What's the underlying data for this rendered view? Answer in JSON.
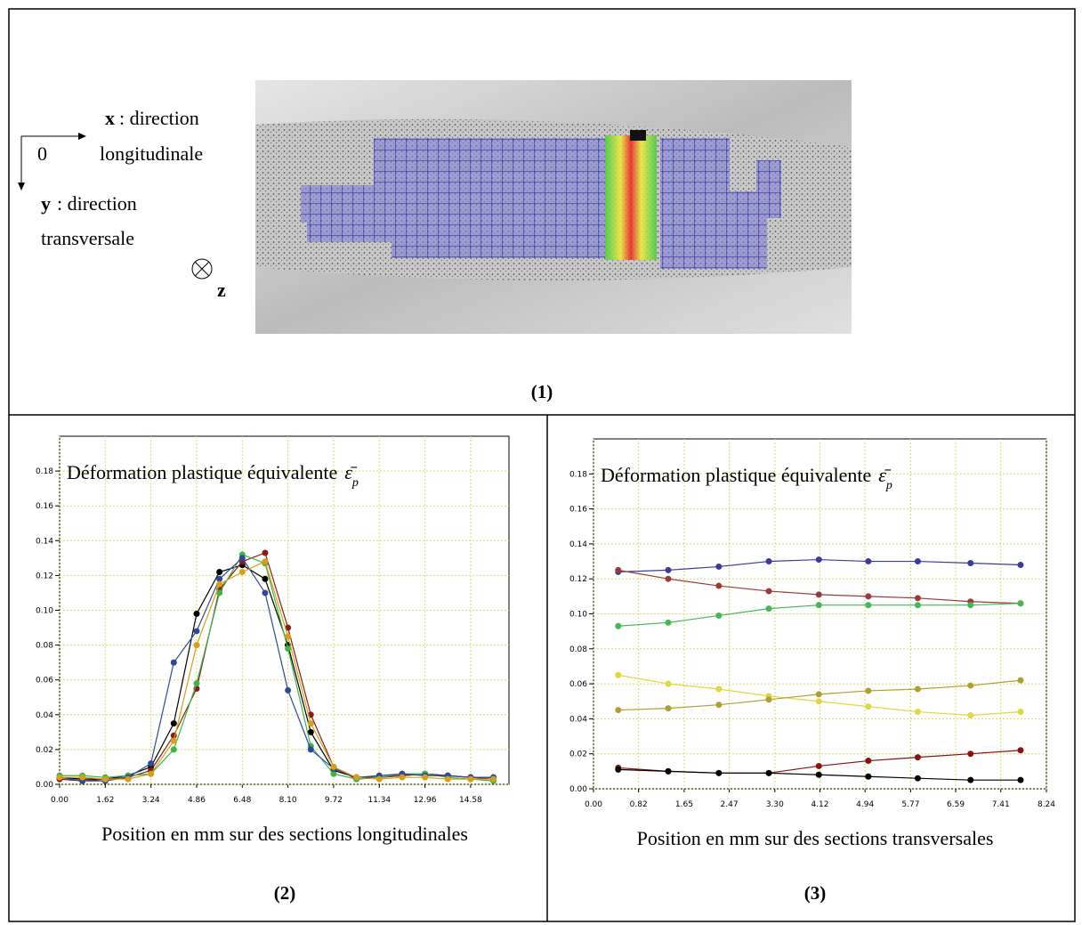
{
  "panel1": {
    "x_axis": "x",
    "x_desc": ": direction",
    "x_desc2": "longitudinale",
    "origin": "0",
    "y_axis": "y",
    "y_desc": ": direction",
    "y_desc2": "transversale",
    "z_axis": "z",
    "caption": "(1)"
  },
  "chart_data": [
    {
      "type": "line",
      "title": "Déformation plastique équivalente",
      "title_symbol": "ε̄",
      "title_subscript": "p",
      "x_label": "Position en mm sur des sections longitudinales",
      "caption": "(2)",
      "grid": true,
      "x": [
        0,
        0.81,
        1.62,
        2.43,
        3.24,
        4.05,
        4.86,
        5.67,
        6.48,
        7.29,
        8.1,
        8.91,
        9.72,
        10.53,
        11.34,
        12.15,
        12.96,
        13.77,
        14.58,
        15.39
      ],
      "series": [
        {
          "color": "#000000",
          "values": [
            0.004,
            0.003,
            0.003,
            0.005,
            0.01,
            0.035,
            0.098,
            0.122,
            0.126,
            0.118,
            0.08,
            0.03,
            0.008,
            0.004,
            0.004,
            0.005,
            0.006,
            0.005,
            0.004,
            0.004
          ]
        },
        {
          "color": "#8b1a1a",
          "values": [
            0.003,
            0.002,
            0.003,
            0.004,
            0.008,
            0.028,
            0.055,
            0.112,
            0.128,
            0.133,
            0.09,
            0.04,
            0.01,
            0.003,
            0.004,
            0.005,
            0.006,
            0.005,
            0.004,
            0.003
          ]
        },
        {
          "color": "#3cb44b",
          "values": [
            0.005,
            0.005,
            0.004,
            0.005,
            0.006,
            0.02,
            0.058,
            0.11,
            0.132,
            0.127,
            0.078,
            0.022,
            0.006,
            0.003,
            0.004,
            0.006,
            0.006,
            0.004,
            0.003,
            0.002
          ]
        },
        {
          "color": "#2d4a9a",
          "values": [
            0.004,
            0.002,
            0.002,
            0.004,
            0.012,
            0.07,
            0.088,
            0.118,
            0.13,
            0.11,
            0.054,
            0.02,
            0.009,
            0.004,
            0.005,
            0.006,
            0.005,
            0.005,
            0.004,
            0.004
          ]
        },
        {
          "color": "#d4a017",
          "values": [
            0.004,
            0.004,
            0.003,
            0.003,
            0.006,
            0.025,
            0.08,
            0.115,
            0.122,
            0.128,
            0.085,
            0.035,
            0.01,
            0.004,
            0.003,
            0.004,
            0.004,
            0.003,
            0.003,
            0.003
          ]
        }
      ],
      "xlim": [
        0,
        15.94
      ],
      "ylim": [
        0,
        0.2
      ],
      "xticks": [
        {
          "value": 0,
          "label": "0.00"
        },
        {
          "value": 1.62,
          "label": "1.62"
        },
        {
          "value": 3.24,
          "label": "3.24"
        },
        {
          "value": 4.86,
          "label": "4.86"
        },
        {
          "value": 6.48,
          "label": "6.48"
        },
        {
          "value": 8.1,
          "label": "8.10"
        },
        {
          "value": 9.72,
          "label": "9.72"
        },
        {
          "value": 11.34,
          "label": "11.34"
        },
        {
          "value": 12.96,
          "label": "12.96"
        },
        {
          "value": 14.58,
          "label": "14.58"
        }
      ],
      "yticks": [
        {
          "value": 0,
          "label": "0.00"
        },
        {
          "value": 0.02,
          "label": "0.02"
        },
        {
          "value": 0.04,
          "label": "0.04"
        },
        {
          "value": 0.06,
          "label": "0.06"
        },
        {
          "value": 0.08,
          "label": "0.08"
        },
        {
          "value": 0.1,
          "label": "0.10"
        },
        {
          "value": 0.12,
          "label": "0.12"
        },
        {
          "value": 0.14,
          "label": "0.14"
        },
        {
          "value": 0.16,
          "label": "0.16"
        },
        {
          "value": 0.18,
          "label": "0.18"
        }
      ]
    },
    {
      "type": "line",
      "title": "Déformation plastique équivalente",
      "title_symbol": "ε̄",
      "title_subscript": "p",
      "x_label": "Position en mm sur des sections transversales",
      "caption": "(3)",
      "grid": true,
      "x": [
        0.45,
        1.36,
        2.28,
        3.19,
        4.1,
        5.0,
        5.9,
        6.86,
        7.77
      ],
      "series": [
        {
          "color": "#3a3aa0",
          "values": [
            0.124,
            0.125,
            0.127,
            0.13,
            0.131,
            0.13,
            0.13,
            0.129,
            0.128
          ]
        },
        {
          "color": "#9a3a3a",
          "values": [
            0.125,
            0.12,
            0.116,
            0.113,
            0.111,
            0.11,
            0.109,
            0.107,
            0.106
          ]
        },
        {
          "color": "#44b855",
          "values": [
            0.093,
            0.095,
            0.099,
            0.103,
            0.105,
            0.105,
            0.105,
            0.105,
            0.106
          ]
        },
        {
          "color": "#e0d840",
          "values": [
            0.065,
            0.06,
            0.057,
            0.053,
            0.05,
            0.047,
            0.044,
            0.042,
            0.044
          ]
        },
        {
          "color": "#b0a030",
          "values": [
            0.045,
            0.046,
            0.048,
            0.051,
            0.054,
            0.056,
            0.057,
            0.059,
            0.062
          ]
        },
        {
          "color": "#8b1010",
          "values": [
            0.012,
            0.01,
            0.009,
            0.009,
            0.013,
            0.016,
            0.018,
            0.02,
            0.022
          ]
        },
        {
          "color": "#000000",
          "values": [
            0.011,
            0.01,
            0.009,
            0.009,
            0.008,
            0.007,
            0.006,
            0.005,
            0.005
          ]
        }
      ],
      "xlim": [
        0,
        8.24
      ],
      "ylim": [
        0,
        0.2
      ],
      "xticks": [
        {
          "value": 0,
          "label": "0.00"
        },
        {
          "value": 0.82,
          "label": "0.82"
        },
        {
          "value": 1.65,
          "label": "1.65"
        },
        {
          "value": 2.47,
          "label": "2.47"
        },
        {
          "value": 3.3,
          "label": "3.30"
        },
        {
          "value": 4.12,
          "label": "4.12"
        },
        {
          "value": 4.94,
          "label": "4.94"
        },
        {
          "value": 5.77,
          "label": "5.77"
        },
        {
          "value": 6.59,
          "label": "6.59"
        },
        {
          "value": 7.41,
          "label": "7.41"
        },
        {
          "value": 8.24,
          "label": "8.24"
        }
      ],
      "yticks": [
        {
          "value": 0,
          "label": "0.00"
        },
        {
          "value": 0.02,
          "label": "0.02"
        },
        {
          "value": 0.04,
          "label": "0.04"
        },
        {
          "value": 0.06,
          "label": "0.06"
        },
        {
          "value": 0.08,
          "label": "0.08"
        },
        {
          "value": 0.1,
          "label": "0.10"
        },
        {
          "value": 0.12,
          "label": "0.12"
        },
        {
          "value": 0.14,
          "label": "0.14"
        },
        {
          "value": 0.16,
          "label": "0.16"
        },
        {
          "value": 0.18,
          "label": "0.18"
        }
      ]
    }
  ]
}
